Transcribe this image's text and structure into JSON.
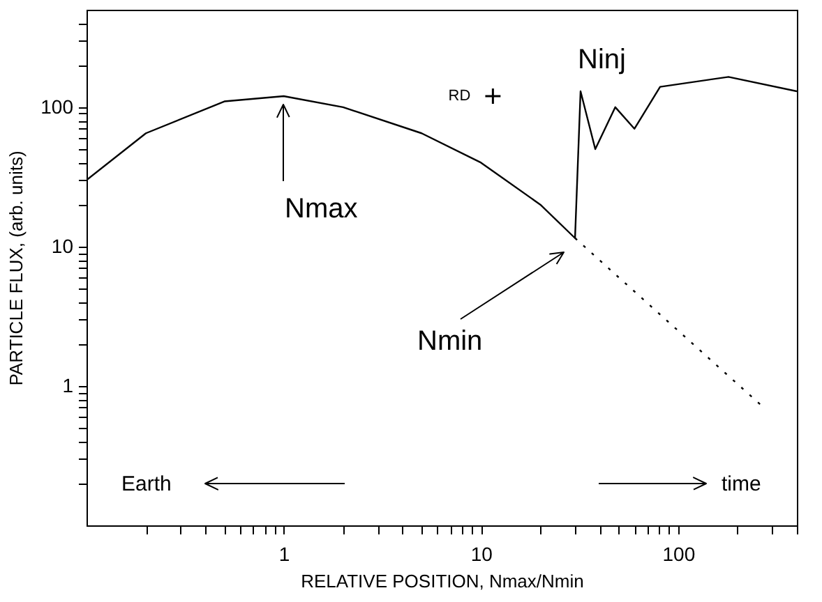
{
  "chart_data": {
    "type": "line",
    "xlabel": "RELATIVE POSITION, Nmax/Nmin",
    "ylabel": "PARTICLE FLUX, (arb. units)",
    "log": "xy",
    "xlim": [
      0.1,
      400
    ],
    "ylim": [
      0.1,
      500
    ],
    "xticks": [
      {
        "value": 0.2,
        "label": null
      },
      {
        "value": 0.3,
        "label": null
      },
      {
        "value": 0.4,
        "label": null
      },
      {
        "value": 0.5,
        "label": null
      },
      {
        "value": 0.6,
        "label": null
      },
      {
        "value": 0.7,
        "label": null
      },
      {
        "value": 0.8,
        "label": null
      },
      {
        "value": 0.9,
        "label": null
      },
      1,
      {
        "value": 2,
        "label": null
      },
      {
        "value": 3,
        "label": null
      },
      {
        "value": 4,
        "label": null
      },
      {
        "value": 5,
        "label": null
      },
      {
        "value": 6,
        "label": null
      },
      {
        "value": 7,
        "label": null
      },
      {
        "value": 8,
        "label": null
      },
      {
        "value": 9,
        "label": null
      },
      10,
      {
        "value": 20,
        "label": null
      },
      {
        "value": 30,
        "label": null
      },
      {
        "value": 40,
        "label": null
      },
      {
        "value": 50,
        "label": null
      },
      {
        "value": 60,
        "label": null
      },
      {
        "value": 70,
        "label": null
      },
      {
        "value": 80,
        "label": null
      },
      {
        "value": 90,
        "label": null
      },
      100,
      {
        "value": 200,
        "label": null
      },
      {
        "value": 300,
        "label": null
      },
      {
        "value": 400,
        "label": null
      }
    ],
    "yticks": [
      {
        "value": 0.2,
        "label": null
      },
      {
        "value": 0.3,
        "label": null
      },
      {
        "value": 0.4,
        "label": null
      },
      {
        "value": 0.5,
        "label": null
      },
      {
        "value": 0.6,
        "label": null
      },
      {
        "value": 0.7,
        "label": null
      },
      {
        "value": 0.8,
        "label": null
      },
      {
        "value": 0.9,
        "label": null
      },
      1,
      {
        "value": 2,
        "label": null
      },
      {
        "value": 3,
        "label": null
      },
      {
        "value": 4,
        "label": null
      },
      {
        "value": 5,
        "label": null
      },
      {
        "value": 6,
        "label": null
      },
      {
        "value": 7,
        "label": null
      },
      {
        "value": 8,
        "label": null
      },
      {
        "value": 9,
        "label": null
      },
      10,
      {
        "value": 20,
        "label": null
      },
      {
        "value": 30,
        "label": null
      },
      {
        "value": 40,
        "label": null
      },
      {
        "value": 50,
        "label": null
      },
      {
        "value": 60,
        "label": null
      },
      {
        "value": 70,
        "label": null
      },
      {
        "value": 80,
        "label": null
      },
      {
        "value": 90,
        "label": null
      },
      100,
      {
        "value": 200,
        "label": null
      },
      {
        "value": 300,
        "label": null
      },
      {
        "value": 400,
        "label": null
      }
    ],
    "grid": false,
    "series": [
      {
        "color": "#000000",
        "line_style": "solid",
        "marker": "none",
        "x": [
          0.1,
          0.2,
          0.5,
          1,
          2,
          5,
          10,
          20,
          30,
          32,
          38,
          48,
          60,
          81,
          180,
          400
        ],
        "values": [
          30,
          65,
          110,
          120,
          100,
          65,
          40,
          20,
          11.5,
          130,
          50,
          100,
          70,
          140,
          165,
          130
        ]
      },
      {
        "color": "#000000",
        "line_style": "dotted",
        "marker": "none",
        "x": [
          30,
          260
        ],
        "values": [
          11.5,
          0.74
        ]
      },
      {
        "name": "RD",
        "type": "scatter",
        "color": "#000000",
        "marker": "cross",
        "x": [
          11.5
        ],
        "values": [
          120
        ]
      }
    ],
    "annotations": [
      "Nmax",
      "Nmin",
      "Ninj",
      "Earth",
      "time"
    ]
  }
}
